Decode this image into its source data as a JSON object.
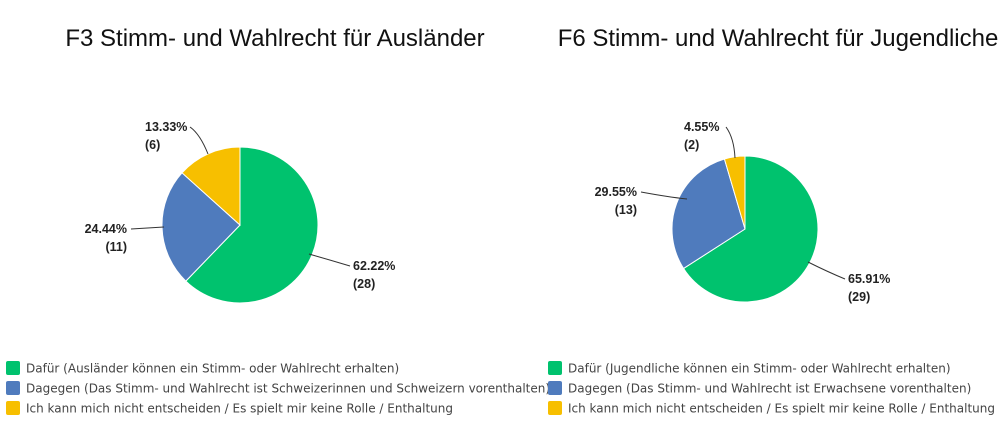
{
  "chart_data": [
    {
      "type": "pie",
      "title": "F3 Stimm- und Wahlrecht für Ausländer",
      "categories": [
        "Dafür (Ausländer können ein Stimm- oder Wahlrecht erhalten)",
        "Dagegen (Das Stimm- und Wahlrecht ist Schweizerinnen und Schweizern vorenthalten)",
        "Ich kann mich nicht entscheiden / Es spielt mir keine Rolle / Enthaltung"
      ],
      "values": [
        28,
        11,
        6
      ],
      "percent_labels": [
        "62.22%",
        "24.44%",
        "13.33%"
      ],
      "count_labels": [
        "(28)",
        "(11)",
        "(6)"
      ],
      "colors": [
        "#00c26e",
        "#4f7bbd",
        "#f7bf00"
      ],
      "legend_position": "bottom-left"
    },
    {
      "type": "pie",
      "title": "F6 Stimm- und Wahlrecht für Jugendliche",
      "categories": [
        "Dafür (Jugendliche können ein Stimm- oder Wahlrecht erhalten)",
        "Dagegen (Das Stimm- und Wahlrecht ist Erwachsene vorenthalten)",
        "Ich kann mich nicht entscheiden / Es spielt mir keine Rolle / Enthaltung"
      ],
      "values": [
        29,
        13,
        2
      ],
      "percent_labels": [
        "65.91%",
        "29.55%",
        "4.55%"
      ],
      "count_labels": [
        "(29)",
        "(13)",
        "(2)"
      ],
      "colors": [
        "#00c26e",
        "#4f7bbd",
        "#f7bf00"
      ],
      "legend_position": "bottom-left"
    }
  ]
}
